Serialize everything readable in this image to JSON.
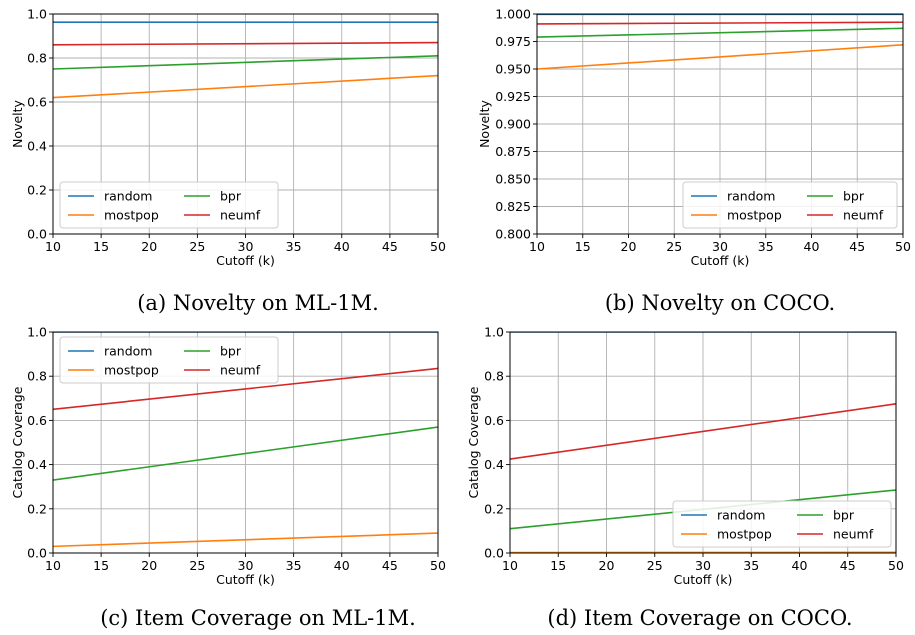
{
  "colors": {
    "random": "#1f77b4",
    "mostpop": "#ff7f0e",
    "bpr": "#2ca02c",
    "neumf": "#d62728"
  },
  "chart_data": [
    {
      "type": "line",
      "caption": "(a) Novelty on ML-1M.",
      "xlabel": "Cutoff (k)",
      "ylabel": "Novelty",
      "xlim": [
        10,
        50
      ],
      "ylim": [
        0.0,
        1.0
      ],
      "xticks": [
        10,
        15,
        20,
        25,
        30,
        35,
        40,
        45,
        50
      ],
      "yticks": [
        "0.0",
        "0.2",
        "0.4",
        "0.6",
        "0.8",
        "1.0"
      ],
      "grid": true,
      "legend_position": "lower-left",
      "x": [
        10,
        50
      ],
      "series": [
        {
          "name": "random",
          "values": [
            0.963,
            0.963
          ]
        },
        {
          "name": "mostpop",
          "values": [
            0.62,
            0.72
          ]
        },
        {
          "name": "bpr",
          "values": [
            0.75,
            0.81
          ]
        },
        {
          "name": "neumf",
          "values": [
            0.86,
            0.87
          ]
        }
      ]
    },
    {
      "type": "line",
      "caption": "(b) Novelty on COCO.",
      "xlabel": "Cutoff (k)",
      "ylabel": "Novelty",
      "xlim": [
        10,
        50
      ],
      "ylim": [
        0.8,
        1.0
      ],
      "xticks": [
        10,
        15,
        20,
        25,
        30,
        35,
        40,
        45,
        50
      ],
      "yticks": [
        "0.800",
        "0.825",
        "0.850",
        "0.875",
        "0.900",
        "0.925",
        "0.950",
        "0.975",
        "1.000"
      ],
      "grid": true,
      "legend_position": "lower-right",
      "x": [
        10,
        50
      ],
      "series": [
        {
          "name": "random",
          "values": [
            0.9997,
            0.9997
          ]
        },
        {
          "name": "mostpop",
          "values": [
            0.95,
            0.972
          ]
        },
        {
          "name": "bpr",
          "values": [
            0.979,
            0.987
          ]
        },
        {
          "name": "neumf",
          "values": [
            0.991,
            0.9925
          ]
        }
      ]
    },
    {
      "type": "line",
      "caption": "(c) Item Coverage on ML-1M.",
      "xlabel": "Cutoff (k)",
      "ylabel": "Catalog Coverage",
      "xlim": [
        10,
        50
      ],
      "ylim": [
        0.0,
        1.0
      ],
      "xticks": [
        10,
        15,
        20,
        25,
        30,
        35,
        40,
        45,
        50
      ],
      "yticks": [
        "0.0",
        "0.2",
        "0.4",
        "0.6",
        "0.8",
        "1.0"
      ],
      "grid": true,
      "legend_position": "upper-left",
      "x": [
        10,
        50
      ],
      "series": [
        {
          "name": "random",
          "values": [
            1.0,
            1.0
          ]
        },
        {
          "name": "mostpop",
          "values": [
            0.03,
            0.09
          ]
        },
        {
          "name": "bpr",
          "values": [
            0.33,
            0.57
          ]
        },
        {
          "name": "neumf",
          "values": [
            0.65,
            0.835
          ]
        }
      ]
    },
    {
      "type": "line",
      "caption": "(d) Item Coverage on COCO.",
      "xlabel": "Cutoff (k)",
      "ylabel": "Catalog Coverage",
      "xlim": [
        10,
        50
      ],
      "ylim": [
        0.0,
        1.0
      ],
      "xticks": [
        10,
        15,
        20,
        25,
        30,
        35,
        40,
        45,
        50
      ],
      "yticks": [
        "0.0",
        "0.2",
        "0.4",
        "0.6",
        "0.8",
        "1.0"
      ],
      "grid": true,
      "legend_position": "lower-right",
      "x": [
        10,
        50
      ],
      "series": [
        {
          "name": "random",
          "values": [
            1.0,
            1.0
          ]
        },
        {
          "name": "mostpop",
          "values": [
            0.002,
            0.003
          ]
        },
        {
          "name": "bpr",
          "values": [
            0.11,
            0.285
          ]
        },
        {
          "name": "neumf",
          "values": [
            0.425,
            0.675
          ]
        }
      ]
    }
  ]
}
